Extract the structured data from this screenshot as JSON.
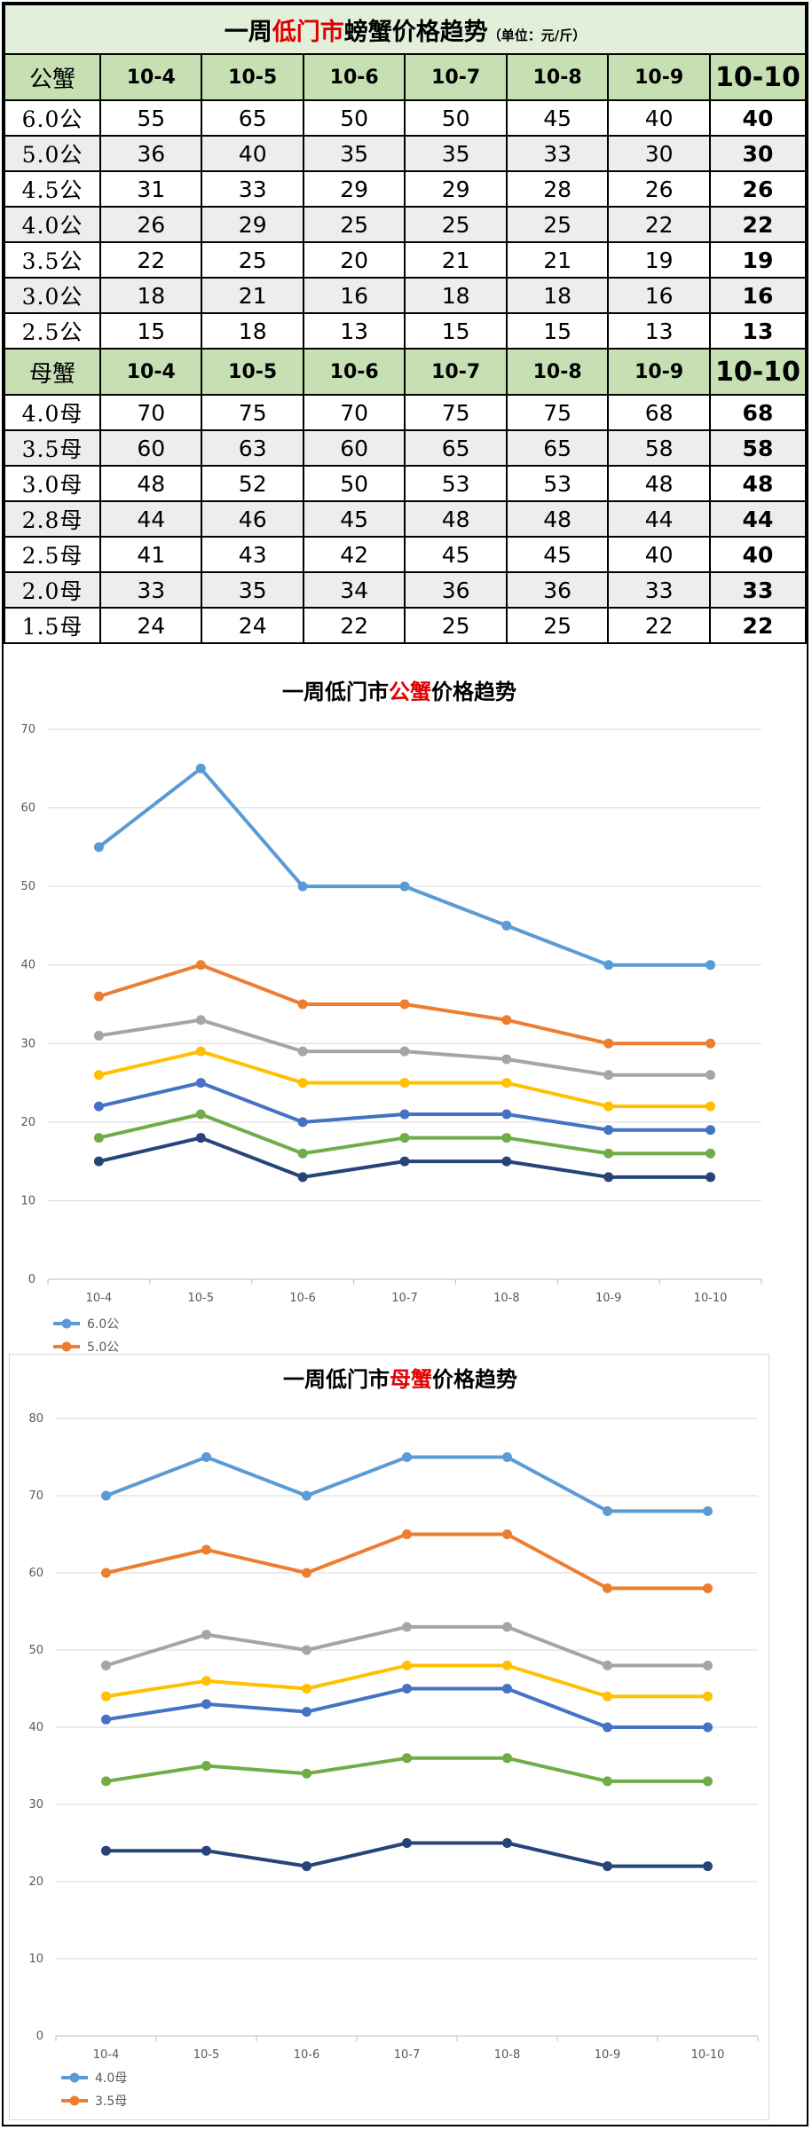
{
  "title": {
    "pre": "一周",
    "highlight": "低门市",
    "post": "螃蟹价格趋势",
    "unit": "（单位：元/斤）"
  },
  "dates": [
    "10-4",
    "10-5",
    "10-6",
    "10-7",
    "10-8",
    "10-9",
    "10-10"
  ],
  "male_table": {
    "header_label": "公蟹",
    "rows": [
      {
        "label": "6.0公",
        "values": [
          "55",
          "65",
          "50",
          "50",
          "45",
          "40",
          "40"
        ]
      },
      {
        "label": "5.0公",
        "values": [
          "36",
          "40",
          "35",
          "35",
          "33",
          "30",
          "30"
        ]
      },
      {
        "label": "4.5公",
        "values": [
          "31",
          "33",
          "29",
          "29",
          "28",
          "26",
          "26"
        ]
      },
      {
        "label": "4.0公",
        "values": [
          "26",
          "29",
          "25",
          "25",
          "25",
          "22",
          "22"
        ]
      },
      {
        "label": "3.5公",
        "values": [
          "22",
          "25",
          "20",
          "21",
          "21",
          "19",
          "19"
        ]
      },
      {
        "label": "3.0公",
        "values": [
          "18",
          "21",
          "16",
          "18",
          "18",
          "16",
          "16"
        ]
      },
      {
        "label": "2.5公",
        "values": [
          "15",
          "18",
          "13",
          "15",
          "15",
          "13",
          "13"
        ]
      }
    ]
  },
  "female_table": {
    "header_label": "母蟹",
    "rows": [
      {
        "label": "4.0母",
        "values": [
          "70",
          "75",
          "70",
          "75",
          "75",
          "68",
          "68"
        ]
      },
      {
        "label": "3.5母",
        "values": [
          "60",
          "63",
          "60",
          "65",
          "65",
          "58",
          "58"
        ]
      },
      {
        "label": "3.0母",
        "values": [
          "48",
          "52",
          "50",
          "53",
          "53",
          "48",
          "48"
        ]
      },
      {
        "label": "2.8母",
        "values": [
          "44",
          "46",
          "45",
          "48",
          "48",
          "44",
          "44"
        ]
      },
      {
        "label": "2.5母",
        "values": [
          "41",
          "43",
          "42",
          "45",
          "45",
          "40",
          "40"
        ]
      },
      {
        "label": "2.0母",
        "values": [
          "33",
          "35",
          "34",
          "36",
          "36",
          "33",
          "33"
        ]
      },
      {
        "label": "1.5母",
        "values": [
          "24",
          "24",
          "22",
          "25",
          "25",
          "22",
          "22"
        ]
      }
    ]
  },
  "chart_data": [
    {
      "type": "line",
      "title_pre": "一周低门市",
      "title_highlight": "公蟹",
      "title_post": "价格趋势",
      "categories": [
        "10-4",
        "10-5",
        "10-6",
        "10-7",
        "10-8",
        "10-9",
        "10-10"
      ],
      "ylim": [
        0,
        70
      ],
      "yticks": [
        0,
        10,
        20,
        30,
        40,
        50,
        60,
        70
      ],
      "grid": true,
      "legend_position": "bottom-left",
      "legend_visible": [
        "6.0公",
        "5.0公"
      ],
      "series": [
        {
          "name": "6.0公",
          "color": "#5b9bd5",
          "values": [
            55,
            65,
            50,
            50,
            45,
            40,
            40
          ]
        },
        {
          "name": "5.0公",
          "color": "#ed7d31",
          "values": [
            36,
            40,
            35,
            35,
            33,
            30,
            30
          ]
        },
        {
          "name": "",
          "color": "#a5a5a5",
          "values": [
            31,
            33,
            29,
            29,
            28,
            26,
            26
          ]
        },
        {
          "name": "",
          "color": "#ffc000",
          "values": [
            26,
            29,
            25,
            25,
            25,
            22,
            22
          ]
        },
        {
          "name": "",
          "color": "#4472c4",
          "values": [
            22,
            25,
            20,
            21,
            21,
            19,
            19
          ]
        },
        {
          "name": "",
          "color": "#70ad47",
          "values": [
            18,
            21,
            16,
            18,
            18,
            16,
            16
          ]
        },
        {
          "name": "",
          "color": "#264478",
          "values": [
            15,
            18,
            13,
            15,
            15,
            13,
            13
          ]
        }
      ]
    },
    {
      "type": "line",
      "title_pre": "一周低门市",
      "title_highlight": "母蟹",
      "title_post": "价格趋势",
      "categories": [
        "10-4",
        "10-5",
        "10-6",
        "10-7",
        "10-8",
        "10-9",
        "10-10"
      ],
      "ylim": [
        0,
        80
      ],
      "yticks": [
        0,
        10,
        20,
        30,
        40,
        50,
        60,
        70,
        80
      ],
      "grid": true,
      "legend_position": "bottom-left",
      "legend_visible": [
        "4.0母",
        "3.5母"
      ],
      "series": [
        {
          "name": "4.0母",
          "color": "#5b9bd5",
          "values": [
            70,
            75,
            70,
            75,
            75,
            68,
            68
          ]
        },
        {
          "name": "3.5母",
          "color": "#ed7d31",
          "values": [
            60,
            63,
            60,
            65,
            65,
            58,
            58
          ]
        },
        {
          "name": "",
          "color": "#a5a5a5",
          "values": [
            48,
            52,
            50,
            53,
            53,
            48,
            48
          ]
        },
        {
          "name": "",
          "color": "#ffc000",
          "values": [
            44,
            46,
            45,
            48,
            48,
            44,
            44
          ]
        },
        {
          "name": "",
          "color": "#4472c4",
          "values": [
            41,
            43,
            42,
            45,
            45,
            40,
            40
          ]
        },
        {
          "name": "",
          "color": "#70ad47",
          "values": [
            33,
            35,
            34,
            36,
            36,
            33,
            33
          ]
        },
        {
          "name": "",
          "color": "#264478",
          "values": [
            24,
            24,
            22,
            25,
            25,
            22,
            22
          ]
        }
      ]
    }
  ]
}
